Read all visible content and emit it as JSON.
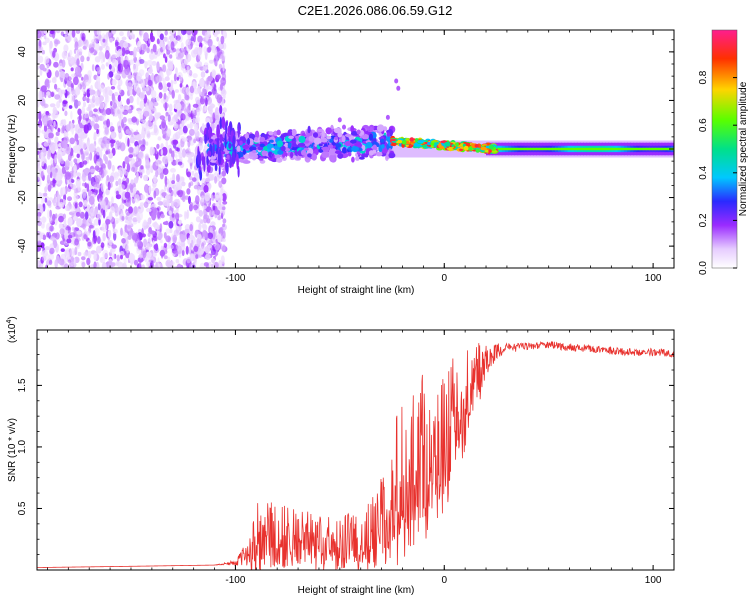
{
  "title": "C2E1.2026.086.06.59.G12",
  "chart_data": [
    {
      "type": "heatmap",
      "name": "spectrogram",
      "xlabel": "Height of straight line (km)",
      "ylabel": "Frequency (Hz)",
      "xlim": [
        -195,
        110
      ],
      "ylim": [
        -49,
        49
      ],
      "xticks": [
        -100,
        0,
        100
      ],
      "xtick_labels": [
        "-100",
        "0",
        "100"
      ],
      "yticks": [
        -40,
        -20,
        0,
        20,
        40
      ],
      "ytick_labels": [
        "-40",
        "-20",
        "0",
        "20",
        "40"
      ],
      "colorbar": {
        "label": "Normalized spectral amplitude",
        "range": [
          0,
          1
        ],
        "ticks": [
          0.0,
          0.2,
          0.4,
          0.6,
          0.8
        ],
        "tick_labels": [
          "0.0",
          "0.2",
          "0.4",
          "0.6",
          "0.8"
        ]
      },
      "regions": [
        {
          "x": [
            -195,
            -110
          ],
          "freq": [
            -49,
            49
          ],
          "amplitude": [
            0.05,
            0.18
          ],
          "description": "scattered noise"
        },
        {
          "x": [
            -112,
            -25
          ],
          "freq_center": 0,
          "freq_halfwidth": 5,
          "amplitude": [
            0.1,
            0.45
          ]
        },
        {
          "x": [
            -25,
            25
          ],
          "freq_center": 0,
          "freq_halfwidth": 3,
          "amplitude": [
            0.35,
            1.0
          ]
        },
        {
          "x": [
            25,
            110
          ],
          "freq_center": 0,
          "freq_halfwidth": 2.5,
          "amplitude": [
            0.15,
            0.45
          ]
        }
      ]
    },
    {
      "type": "line",
      "name": "snr",
      "xlabel": "Height of straight line (km)",
      "ylabel": "SNR (10 * v/v)",
      "y_multiplier": "(x10",
      "y_multiplier_exp": "4",
      "y_multiplier_close": ")",
      "xlim": [
        -195,
        110
      ],
      "ylim": [
        0,
        1.95
      ],
      "xticks": [
        -100,
        0,
        100
      ],
      "xtick_labels": [
        "-100",
        "0",
        "100"
      ],
      "yticks": [
        0.5,
        1.0,
        1.5
      ],
      "ytick_labels": [
        "0.5",
        "1.0",
        "1.5"
      ],
      "color": "#e8322e",
      "series": [
        {
          "name": "SNR",
          "x": [
            -195,
            -150,
            -110,
            -100,
            -95,
            -90,
            -85,
            -80,
            -70,
            -60,
            -50,
            -40,
            -35,
            -30,
            -25,
            -20,
            -15,
            -10,
            -5,
            0,
            5,
            10,
            15,
            20,
            25,
            30,
            40,
            50,
            60,
            70,
            80,
            90,
            100,
            110
          ],
          "y": [
            0.02,
            0.03,
            0.04,
            0.06,
            0.12,
            0.3,
            0.35,
            0.32,
            0.3,
            0.28,
            0.26,
            0.25,
            0.35,
            0.5,
            0.7,
            0.85,
            0.9,
            1.0,
            1.05,
            1.1,
            1.3,
            1.45,
            1.6,
            1.72,
            1.78,
            1.8,
            1.82,
            1.83,
            1.81,
            1.8,
            1.78,
            1.77,
            1.77,
            1.76
          ],
          "amplitude_noise": [
            0.0,
            0.0,
            0.0,
            0.02,
            0.1,
            0.25,
            0.25,
            0.22,
            0.2,
            0.2,
            0.2,
            0.2,
            0.25,
            0.35,
            0.45,
            0.6,
            0.55,
            0.6,
            0.55,
            0.5,
            0.45,
            0.35,
            0.25,
            0.15,
            0.06,
            0.04,
            0.03,
            0.03,
            0.03,
            0.03,
            0.03,
            0.03,
            0.03,
            0.03
          ]
        }
      ]
    }
  ]
}
